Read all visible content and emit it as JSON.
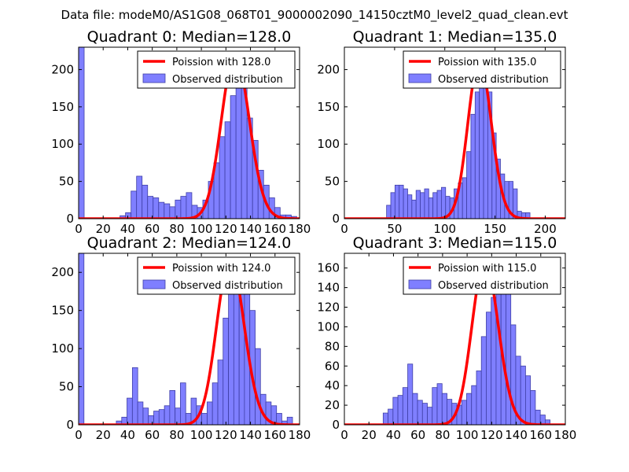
{
  "suptitle": "Data file: modeM0/AS1G08_068T01_9000002090_14150cztM0_level2_quad_clean.evt",
  "colors": {
    "hist_fill": "#7f7fff",
    "hist_edge": "#3f3fa6",
    "poisson_line": "#ff0000",
    "axes": "#000000"
  },
  "chart_data": [
    {
      "type": "bar",
      "title": "Quadrant 0: Median=128.0",
      "xlim": [
        0,
        180
      ],
      "ylim": [
        0,
        230
      ],
      "xticks": [
        0,
        20,
        40,
        60,
        80,
        100,
        120,
        140,
        160,
        180
      ],
      "yticks": [
        0,
        50,
        100,
        150,
        200
      ],
      "bin_width": 4.5,
      "bin_starts": [
        0,
        33.7,
        38.2,
        42.7,
        47.2,
        51.7,
        56.2,
        60.7,
        65.2,
        69.7,
        74.2,
        78.7,
        83.2,
        87.7,
        92.2,
        96.7,
        101.2,
        105.7,
        110.2,
        114.7,
        119.2,
        123.7,
        128.2,
        132.7,
        137.2,
        141.7,
        146.2,
        150.7,
        155.2,
        159.7,
        164.2,
        168.7,
        173.2
      ],
      "values": [
        230,
        4,
        8,
        37,
        57,
        45,
        30,
        28,
        22,
        20,
        16,
        25,
        30,
        35,
        18,
        15,
        25,
        50,
        75,
        110,
        130,
        165,
        175,
        190,
        135,
        105,
        65,
        45,
        28,
        15,
        5,
        5,
        3
      ],
      "legend": {
        "line_label": "Poission with 128.0",
        "bar_label": "Observed distribution"
      },
      "median": 128.0,
      "poisson_peak": 220
    },
    {
      "type": "bar",
      "title": "Quadrant 1: Median=135.0",
      "xlim": [
        0,
        220
      ],
      "ylim": [
        0,
        230
      ],
      "xticks": [
        0,
        50,
        100,
        150,
        200
      ],
      "yticks": [
        0,
        50,
        100,
        150,
        200
      ],
      "bin_width": 4.2,
      "bin_starts": [
        42,
        46.2,
        50.4,
        54.6,
        58.8,
        63,
        67.2,
        71.4,
        75.6,
        79.8,
        84,
        88.2,
        92.4,
        96.6,
        100.8,
        105,
        109.2,
        113.4,
        117.6,
        121.8,
        126,
        130.2,
        134.4,
        138.6,
        142.8,
        147,
        151.2,
        155.4,
        159.6,
        163.8,
        168,
        172.2,
        176.4,
        180.6
      ],
      "values": [
        18,
        35,
        45,
        45,
        40,
        32,
        25,
        38,
        35,
        40,
        28,
        35,
        38,
        42,
        30,
        28,
        40,
        48,
        55,
        90,
        140,
        170,
        210,
        210,
        170,
        115,
        80,
        60,
        50,
        50,
        40,
        10,
        8,
        8
      ],
      "legend": {
        "line_label": "Poission with 135.0",
        "bar_label": "Observed distribution"
      },
      "median": 135.0,
      "poisson_peak": 213
    },
    {
      "type": "bar",
      "title": "Quadrant 2: Median=124.0",
      "xlim": [
        0,
        180
      ],
      "ylim": [
        0,
        225
      ],
      "xticks": [
        0,
        20,
        40,
        60,
        80,
        100,
        120,
        140,
        160,
        180
      ],
      "yticks": [
        0,
        50,
        100,
        150,
        200
      ],
      "bin_width": 4.35,
      "bin_starts": [
        0,
        30.7,
        35.1,
        39.4,
        43.8,
        48.1,
        52.5,
        56.8,
        61.2,
        65.5,
        69.9,
        74.2,
        78.6,
        82.9,
        87.3,
        91.6,
        96,
        100.3,
        104.7,
        109,
        113.4,
        117.7,
        122.1,
        126.4,
        130.8,
        135.1,
        139.5,
        143.8,
        148.2,
        152.5,
        156.9,
        161.2,
        165.6,
        169.9
      ],
      "values": [
        225,
        5,
        10,
        35,
        75,
        30,
        22,
        12,
        18,
        20,
        25,
        45,
        22,
        55,
        15,
        35,
        25,
        15,
        30,
        55,
        85,
        140,
        190,
        195,
        205,
        210,
        150,
        100,
        40,
        30,
        25,
        15,
        5,
        10
      ],
      "legend": {
        "line_label": "Poission with 124.0",
        "bar_label": "Observed distribution"
      },
      "median": 124.0,
      "poisson_peak": 217
    },
    {
      "type": "bar",
      "title": "Quadrant 3: Median=115.0",
      "xlim": [
        0,
        180
      ],
      "ylim": [
        0,
        175
      ],
      "xticks": [
        0,
        20,
        40,
        60,
        80,
        100,
        120,
        140,
        160,
        180
      ],
      "yticks": [
        0,
        20,
        40,
        60,
        80,
        100,
        120,
        140,
        160
      ],
      "bin_width": 4.0,
      "bin_starts": [
        31.6,
        35.6,
        39.6,
        43.6,
        47.6,
        51.6,
        55.6,
        59.6,
        63.6,
        67.6,
        71.6,
        75.6,
        79.6,
        83.6,
        87.6,
        91.6,
        95.6,
        99.6,
        103.6,
        107.6,
        111.6,
        115.6,
        119.6,
        123.6,
        127.6,
        131.6,
        135.6,
        139.6,
        143.6,
        147.6,
        151.6,
        155.6,
        159.6,
        163.6
      ],
      "values": [
        12,
        16,
        28,
        30,
        38,
        62,
        32,
        25,
        22,
        18,
        38,
        42,
        32,
        26,
        22,
        20,
        25,
        32,
        40,
        55,
        90,
        115,
        130,
        150,
        160,
        138,
        102,
        70,
        60,
        50,
        35,
        15,
        10,
        5
      ],
      "legend": {
        "line_label": "Poission with 115.0",
        "bar_label": "Observed distribution"
      },
      "median": 115.0,
      "poisson_peak": 167
    }
  ]
}
